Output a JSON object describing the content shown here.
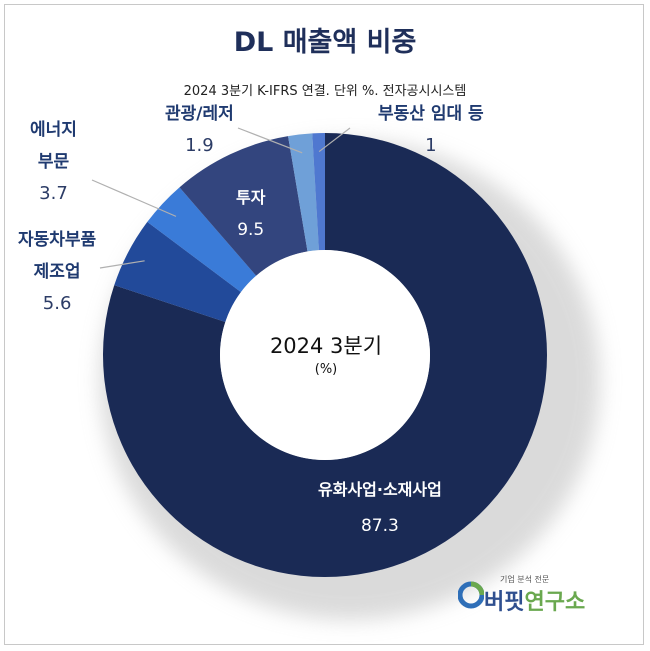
{
  "title": "DL 매출액 비중",
  "subtitle": "2024 3분기 K-IFRS 연결. 단위 %. 전자공시시스템",
  "center": {
    "line1": "2024 3분기",
    "line2": "(%)"
  },
  "logo": {
    "small": "기업 분석 전문",
    "main_a": "버핏",
    "main_b": "연구소"
  },
  "colors": {
    "petro": "#1a2a55",
    "auto": "#224a9a",
    "energy": "#3a7bd8",
    "invest": "#33457e",
    "leisure": "#6fa0d8",
    "realestate": "#4f78d0"
  },
  "chart_data": {
    "type": "pie",
    "donut": true,
    "slices": [
      {
        "label": "유화사업·소재사업",
        "value": 87.3,
        "color_key": "petro"
      },
      {
        "label": "자동차부품 제조업",
        "value": 5.6,
        "color_key": "auto"
      },
      {
        "label": "에너지 부문",
        "value": 3.7,
        "color_key": "energy"
      },
      {
        "label": "투자",
        "value": 9.5,
        "color_key": "invest"
      },
      {
        "label": "관광/레저",
        "value": 1.9,
        "color_key": "leisure"
      },
      {
        "label": "부동산 임대 등",
        "value": 1,
        "color_key": "realestate"
      }
    ],
    "labels": {
      "petro": {
        "name": "유화사업·소재사업",
        "value": "87.3"
      },
      "auto": {
        "name1": "자동차부품",
        "name2": "제조업",
        "value": "5.6"
      },
      "energy": {
        "name1": "에너지",
        "name2": "부문",
        "value": "3.7"
      },
      "invest": {
        "name": "투자",
        "value": "9.5"
      },
      "leisure": {
        "name": "관광/레저",
        "value": "1.9"
      },
      "realestate": {
        "name": "부동산 임대 등",
        "value": "1"
      }
    }
  }
}
